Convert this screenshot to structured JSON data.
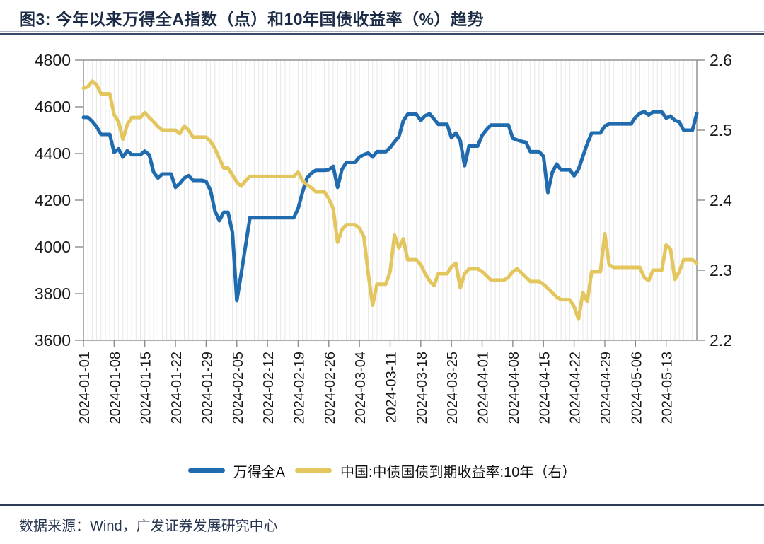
{
  "header": {
    "title": "图3: 今年以来万得全A指数（点）和10年国债收益率（%）趋势"
  },
  "footer": {
    "source": "数据来源：Wind，广发证券发展研究中心"
  },
  "legend": [
    {
      "label": "万得全A",
      "color": "#1F6BAE"
    },
    {
      "label": "中国:中债国债到期收益率:10年（右）",
      "color": "#E4C65E"
    }
  ],
  "colors": {
    "index_line": "#1F6BAE",
    "yield_line": "#E4C65E",
    "axis": "#8c8c8c",
    "gridline": "#e7e7e7",
    "tick_label": "#1a1a1a",
    "title_navy": "#1c2b45"
  },
  "chart_data": {
    "type": "line",
    "title": "图3: 今年以来万得全A指数（点）和10年国债收益率（%）趋势",
    "grid": "vertical-daily-only",
    "legend_position": "bottom",
    "x_tick_labels": [
      "2024-01-01",
      "2024-01-08",
      "2024-01-15",
      "2024-01-22",
      "2024-01-29",
      "2024-02-05",
      "2024-02-12",
      "2024-02-19",
      "2024-02-26",
      "2024-03-04",
      "2024-03-11",
      "2024-03-18",
      "2024-03-25",
      "2024-04-01",
      "2024-04-08",
      "2024-04-15",
      "2024-04-22",
      "2024-04-29",
      "2024-05-06",
      "2024-05-13"
    ],
    "y_left": {
      "label": "万得全A指数（点）",
      "min": 3600,
      "max": 4800,
      "ticks": [
        4800,
        4600,
        4400,
        4200,
        4000,
        3800,
        3600
      ]
    },
    "y_right": {
      "label": "10年国债收益率（%）",
      "min": 2.2,
      "max": 2.6,
      "ticks": [
        2.6,
        2.5,
        2.4,
        2.3,
        2.2
      ]
    },
    "x": [
      "2024-01-01",
      "2024-01-02",
      "2024-01-03",
      "2024-01-04",
      "2024-01-05",
      "2024-01-06",
      "2024-01-07",
      "2024-01-08",
      "2024-01-09",
      "2024-01-10",
      "2024-01-11",
      "2024-01-12",
      "2024-01-13",
      "2024-01-14",
      "2024-01-15",
      "2024-01-16",
      "2024-01-17",
      "2024-01-18",
      "2024-01-19",
      "2024-01-20",
      "2024-01-21",
      "2024-01-22",
      "2024-01-23",
      "2024-01-24",
      "2024-01-25",
      "2024-01-26",
      "2024-01-27",
      "2024-01-28",
      "2024-01-29",
      "2024-01-30",
      "2024-01-31",
      "2024-02-01",
      "2024-02-02",
      "2024-02-03",
      "2024-02-04",
      "2024-02-05",
      "2024-02-06",
      "2024-02-07",
      "2024-02-08",
      "2024-02-09",
      "2024-02-10",
      "2024-02-11",
      "2024-02-12",
      "2024-02-13",
      "2024-02-14",
      "2024-02-15",
      "2024-02-16",
      "2024-02-17",
      "2024-02-18",
      "2024-02-19",
      "2024-02-20",
      "2024-02-21",
      "2024-02-22",
      "2024-02-23",
      "2024-02-24",
      "2024-02-25",
      "2024-02-26",
      "2024-02-27",
      "2024-02-28",
      "2024-02-29",
      "2024-03-01",
      "2024-03-02",
      "2024-03-03",
      "2024-03-04",
      "2024-03-05",
      "2024-03-06",
      "2024-03-07",
      "2024-03-08",
      "2024-03-09",
      "2024-03-10",
      "2024-03-11",
      "2024-03-12",
      "2024-03-13",
      "2024-03-14",
      "2024-03-15",
      "2024-03-16",
      "2024-03-17",
      "2024-03-18",
      "2024-03-19",
      "2024-03-20",
      "2024-03-21",
      "2024-03-22",
      "2024-03-23",
      "2024-03-24",
      "2024-03-25",
      "2024-03-26",
      "2024-03-27",
      "2024-03-28",
      "2024-03-29",
      "2024-03-30",
      "2024-03-31",
      "2024-04-01",
      "2024-04-02",
      "2024-04-03",
      "2024-04-04",
      "2024-04-05",
      "2024-04-06",
      "2024-04-07",
      "2024-04-08",
      "2024-04-09",
      "2024-04-10",
      "2024-04-11",
      "2024-04-12",
      "2024-04-13",
      "2024-04-14",
      "2024-04-15",
      "2024-04-16",
      "2024-04-17",
      "2024-04-18",
      "2024-04-19",
      "2024-04-20",
      "2024-04-21",
      "2024-04-22",
      "2024-04-23",
      "2024-04-24",
      "2024-04-25",
      "2024-04-26",
      "2024-04-27",
      "2024-04-28",
      "2024-04-29",
      "2024-04-30",
      "2024-05-01",
      "2024-05-02",
      "2024-05-03",
      "2024-05-04",
      "2024-05-05",
      "2024-05-06",
      "2024-05-07",
      "2024-05-08",
      "2024-05-09",
      "2024-05-10",
      "2024-05-11",
      "2024-05-12",
      "2024-05-13",
      "2024-05-14",
      "2024-05-15",
      "2024-05-16",
      "2024-05-17",
      "2024-05-18",
      "2024-05-19",
      "2024-05-20"
    ],
    "series": [
      {
        "name": "万得全A",
        "axis": "left",
        "color": "#1F6BAE",
        "values": [
          4555,
          4555,
          4538,
          4515,
          4482,
          4482,
          4482,
          4405,
          4420,
          4385,
          4412,
          4395,
          4395,
          4395,
          4410,
          4395,
          4320,
          4295,
          4312,
          4312,
          4312,
          4255,
          4272,
          4295,
          4305,
          4285,
          4285,
          4285,
          4280,
          4242,
          4155,
          4112,
          4148,
          4148,
          4062,
          3770,
          3885,
          4005,
          4125,
          4125,
          4125,
          4125,
          4125,
          4125,
          4125,
          4125,
          4125,
          4125,
          4125,
          4165,
          4235,
          4295,
          4315,
          4328,
          4328,
          4328,
          4330,
          4345,
          4255,
          4332,
          4362,
          4362,
          4362,
          4385,
          4395,
          4402,
          4385,
          4408,
          4408,
          4408,
          4425,
          4450,
          4472,
          4540,
          4568,
          4568,
          4568,
          4542,
          4562,
          4570,
          4548,
          4525,
          4525,
          4525,
          4468,
          4488,
          4455,
          4348,
          4432,
          4432,
          4432,
          4478,
          4502,
          4522,
          4522,
          4522,
          4522,
          4522,
          4465,
          4458,
          4452,
          4448,
          4408,
          4408,
          4408,
          4388,
          4233,
          4318,
          4355,
          4330,
          4330,
          4330,
          4305,
          4332,
          4388,
          4442,
          4488,
          4488,
          4488,
          4518,
          4527,
          4527,
          4527,
          4527,
          4527,
          4527,
          4555,
          4572,
          4580,
          4565,
          4578,
          4578,
          4578,
          4552,
          4560,
          4542,
          4535,
          4500,
          4500,
          4500,
          4572
        ]
      },
      {
        "name": "中国:中债国债到期收益率:10年（右）",
        "axis": "right",
        "color": "#E4C65E",
        "values": [
          2.56,
          2.562,
          2.57,
          2.565,
          2.552,
          2.552,
          2.552,
          2.522,
          2.512,
          2.487,
          2.508,
          2.518,
          2.518,
          2.518,
          2.525,
          2.518,
          2.512,
          2.505,
          2.5,
          2.5,
          2.5,
          2.5,
          2.495,
          2.506,
          2.5,
          2.49,
          2.49,
          2.49,
          2.49,
          2.484,
          2.474,
          2.46,
          2.446,
          2.446,
          2.436,
          2.426,
          2.42,
          2.428,
          2.434,
          2.434,
          2.434,
          2.434,
          2.434,
          2.434,
          2.434,
          2.434,
          2.434,
          2.434,
          2.434,
          2.44,
          2.428,
          2.422,
          2.418,
          2.412,
          2.412,
          2.412,
          2.402,
          2.388,
          2.34,
          2.358,
          2.365,
          2.365,
          2.365,
          2.36,
          2.348,
          2.295,
          2.25,
          2.28,
          2.28,
          2.28,
          2.298,
          2.35,
          2.332,
          2.345,
          2.315,
          2.315,
          2.315,
          2.308,
          2.295,
          2.285,
          2.278,
          2.295,
          2.295,
          2.295,
          2.305,
          2.31,
          2.275,
          2.295,
          2.302,
          2.302,
          2.302,
          2.298,
          2.292,
          2.286,
          2.286,
          2.286,
          2.286,
          2.29,
          2.298,
          2.302,
          2.296,
          2.29,
          2.284,
          2.284,
          2.284,
          2.28,
          2.274,
          2.268,
          2.262,
          2.258,
          2.258,
          2.258,
          2.248,
          2.23,
          2.268,
          2.255,
          2.298,
          2.298,
          2.298,
          2.352,
          2.308,
          2.304,
          2.304,
          2.304,
          2.304,
          2.304,
          2.304,
          2.304,
          2.29,
          2.285,
          2.3,
          2.3,
          2.3,
          2.336,
          2.33,
          2.287,
          2.298,
          2.315,
          2.315,
          2.315,
          2.31
        ]
      }
    ]
  }
}
